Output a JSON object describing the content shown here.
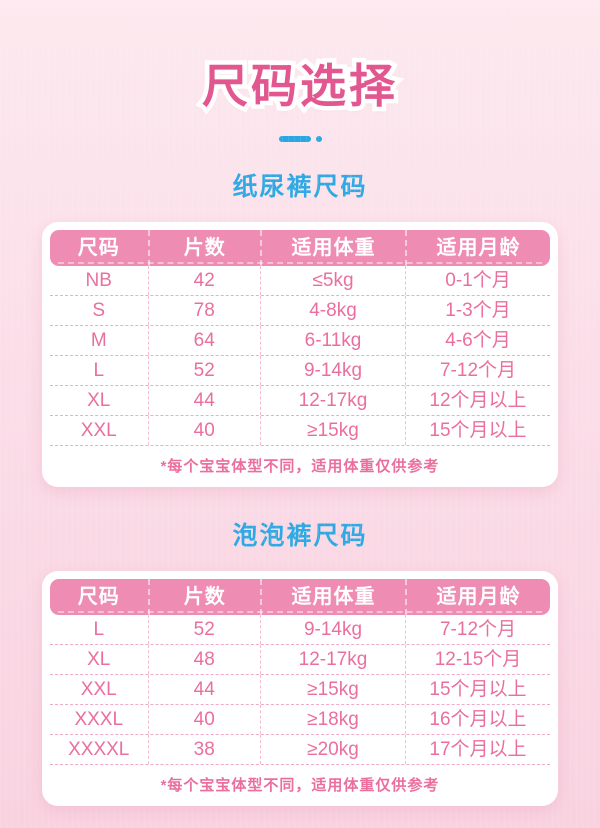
{
  "page": {
    "title": "尺码选择"
  },
  "colors": {
    "background_top": "#fde9ef",
    "background_bottom": "#f9d2e0",
    "title_pink": "#e2578f",
    "accent_blue": "#29a7e5",
    "table_header_pink": "#ee8cb3",
    "cell_text_pink": "#ea6f9e",
    "dashed_line_pink": "#f1abc8",
    "card_background": "#ffffff"
  },
  "tables": [
    {
      "section_title": "纸尿裤尺码",
      "headers": [
        "尺码",
        "片数",
        "适用体重",
        "适用月龄"
      ],
      "rows": [
        {
          "size": "NB",
          "count": "42",
          "weight": "≤5kg",
          "age": "0-1个月"
        },
        {
          "size": "S",
          "count": "78",
          "weight": "4-8kg",
          "age": "1-3个月"
        },
        {
          "size": "M",
          "count": "64",
          "weight": "6-11kg",
          "age": "4-6个月"
        },
        {
          "size": "L",
          "count": "52",
          "weight": "9-14kg",
          "age": "7-12个月"
        },
        {
          "size": "XL",
          "count": "44",
          "weight": "12-17kg",
          "age": "12个月以上"
        },
        {
          "size": "XXL",
          "count": "40",
          "weight": "≥15kg",
          "age": "15个月以上"
        }
      ],
      "footnote": "*每个宝宝体型不同，适用体重仅供参考"
    },
    {
      "section_title": "泡泡裤尺码",
      "headers": [
        "尺码",
        "片数",
        "适用体重",
        "适用月龄"
      ],
      "rows": [
        {
          "size": "L",
          "count": "52",
          "weight": "9-14kg",
          "age": "7-12个月"
        },
        {
          "size": "XL",
          "count": "48",
          "weight": "12-17kg",
          "age": "12-15个月"
        },
        {
          "size": "XXL",
          "count": "44",
          "weight": "≥15kg",
          "age": "15个月以上"
        },
        {
          "size": "XXXL",
          "count": "40",
          "weight": "≥18kg",
          "age": "16个月以上"
        },
        {
          "size": "XXXXL",
          "count": "38",
          "weight": "≥20kg",
          "age": "17个月以上"
        }
      ],
      "footnote": "*每个宝宝体型不同，适用体重仅供参考"
    }
  ]
}
